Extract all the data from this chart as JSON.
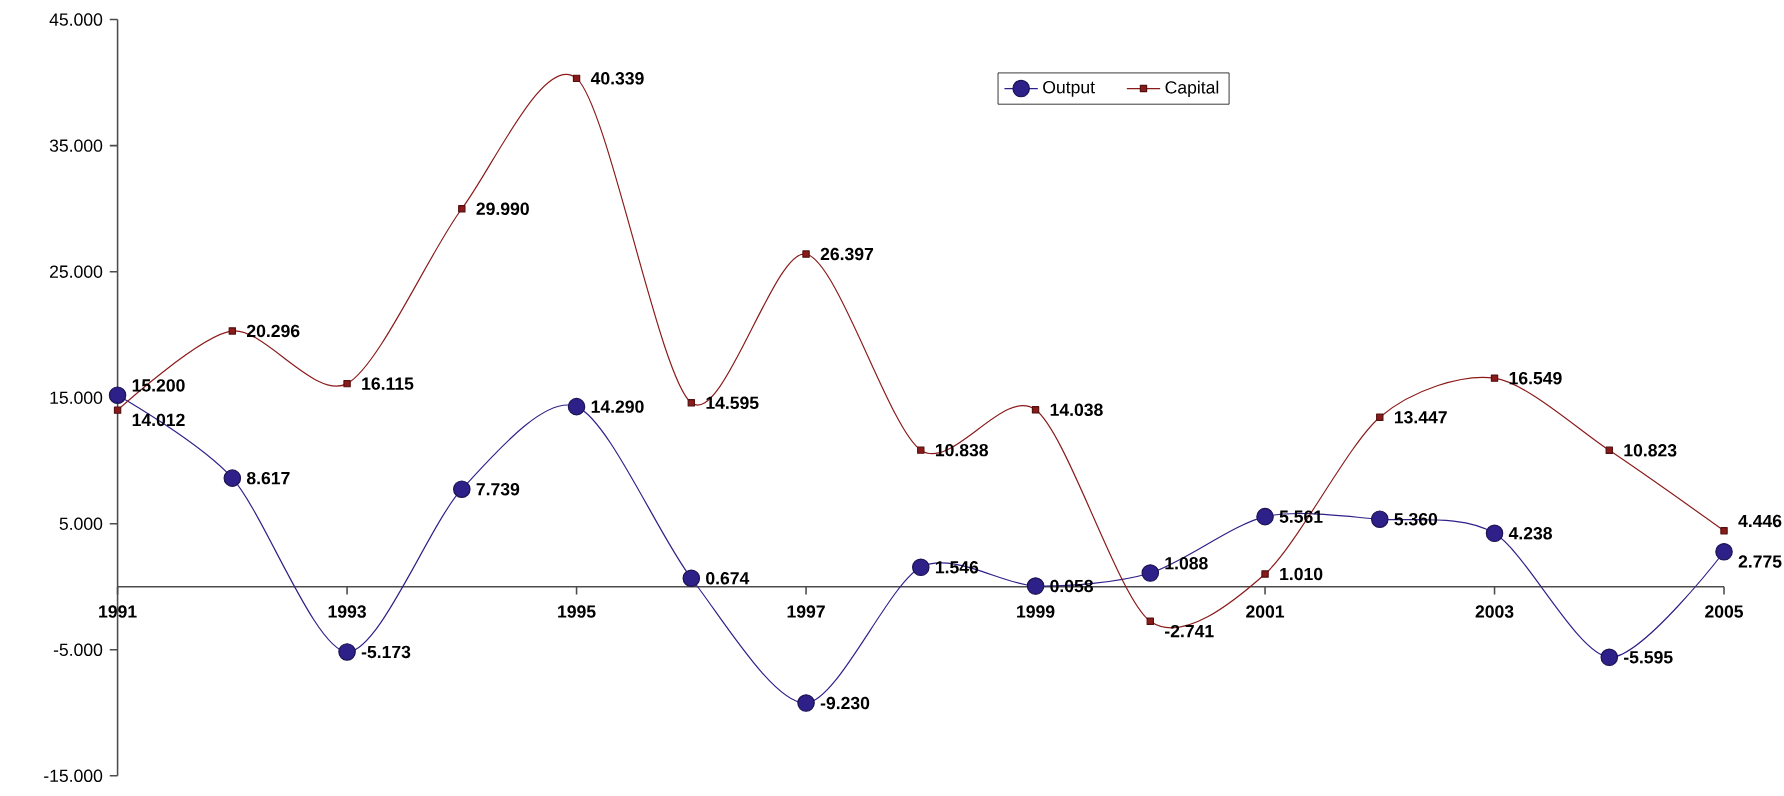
{
  "chart_data": {
    "type": "line",
    "x": [
      1991,
      1992,
      1993,
      1994,
      1995,
      1996,
      1997,
      1998,
      1999,
      2000,
      2001,
      2002,
      2003,
      2004,
      2005
    ],
    "xlim": [
      1991,
      2005
    ],
    "xticks": [
      1991,
      1993,
      1995,
      1997,
      1999,
      2001,
      2003,
      2005
    ],
    "ylim": [
      -15,
      45
    ],
    "yticks": [
      {
        "value": -15,
        "label": "-15.000"
      },
      {
        "value": -5,
        "label": "-5.000"
      },
      {
        "value": 5,
        "label": "5.000"
      },
      {
        "value": 15,
        "label": "15.000"
      },
      {
        "value": 25,
        "label": "25.000"
      },
      {
        "value": 35,
        "label": "35.000"
      },
      {
        "value": 45,
        "label": "45.000"
      }
    ],
    "legend": "top",
    "grid": false,
    "series": [
      {
        "name": "Output",
        "color": "#2e2089",
        "marker": "circle",
        "values": [
          15.2,
          8.617,
          -5.173,
          7.739,
          14.29,
          0.674,
          -9.23,
          1.546,
          0.058,
          1.088,
          5.561,
          5.36,
          4.238,
          -5.595,
          2.775
        ],
        "value_labels": [
          "15.200",
          "8.617",
          "-5.173",
          "7.739",
          "14.290",
          "0.674",
          "-9.230",
          "1.546",
          "0.058",
          "1.088",
          "5.561",
          "5.360",
          "4.238",
          "-5.595",
          "2.775"
        ]
      },
      {
        "name": "Capital",
        "color": "#8b1a1a",
        "marker": "square",
        "values": [
          14.012,
          20.296,
          16.115,
          29.99,
          40.339,
          14.595,
          26.397,
          10.838,
          14.038,
          -2.741,
          1.01,
          13.447,
          16.549,
          10.823,
          4.446
        ],
        "value_labels": [
          "14.012",
          "20.296",
          "16.115",
          "29.990",
          "40.339",
          "14.595",
          "26.397",
          "10.838",
          "14.038",
          "-2.741",
          "1.010",
          "13.447",
          "16.549",
          "10.823",
          "4.446"
        ]
      }
    ]
  }
}
